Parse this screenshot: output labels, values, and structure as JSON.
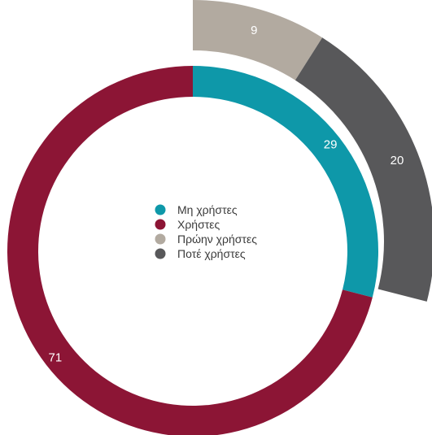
{
  "chart_data": {
    "type": "pie",
    "variant": "nested-donut",
    "inner_ring": [
      {
        "name": "Μη χρήστες",
        "value": 29,
        "label": "29",
        "color": "#0e98a9"
      },
      {
        "name": "Χρήστες",
        "value": 71,
        "label": "71",
        "color": "#8c1535"
      }
    ],
    "outer_ring": {
      "parent": "Μη χρήστες",
      "segments": [
        {
          "name": "Πρώην χρήστες",
          "value": 9,
          "label": "9",
          "color": "#b2aaa0"
        },
        {
          "name": "Ποτέ χρήστες",
          "value": 20,
          "label": "20",
          "color": "#58585a"
        }
      ]
    },
    "legend": {
      "placement": "center",
      "items": [
        {
          "label": "Μη χρήστες",
          "color": "#0e98a9"
        },
        {
          "label": "Χρήστες",
          "color": "#8c1535"
        },
        {
          "label": "Πρώην χρήστες",
          "color": "#b2aaa0"
        },
        {
          "label": "Ποτέ χρήστες",
          "color": "#58585a"
        }
      ]
    }
  }
}
